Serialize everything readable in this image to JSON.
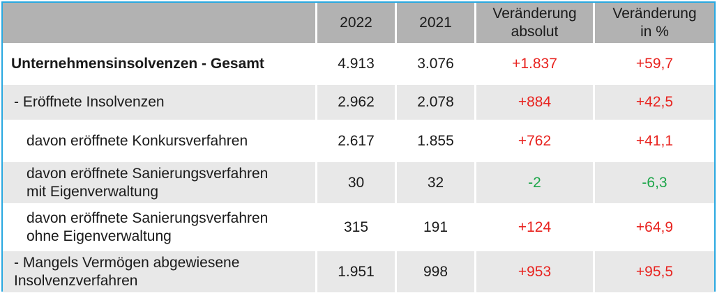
{
  "header": {
    "col_2022": "2022",
    "col_2021": "2021",
    "col_abs_line1": "Veränderung",
    "col_abs_line2": "absolut",
    "col_pct_line1": "Veränderung",
    "col_pct_line2": "in %"
  },
  "rows": [
    {
      "label_line1": "Unternehmensinsolvenzen - Gesamt",
      "label_line2": "",
      "v2022": "4.913",
      "v2021": "3.076",
      "abs": "+1.837",
      "pct": "+59,7"
    },
    {
      "label_line1": "- Eröffnete Insolvenzen",
      "label_line2": "",
      "v2022": "2.962",
      "v2021": "2.078",
      "abs": "+884",
      "pct": "+42,5"
    },
    {
      "label_line1": "davon eröffnete Konkursverfahren",
      "label_line2": "",
      "v2022": "2.617",
      "v2021": "1.855",
      "abs": "+762",
      "pct": "+41,1"
    },
    {
      "label_line1": "davon eröffnete Sanierungsverfahren",
      "label_line2": "mit Eigenverwaltung",
      "v2022": "30",
      "v2021": "32",
      "abs": "-2",
      "pct": "-6,3"
    },
    {
      "label_line1": "davon eröffnete Sanierungsverfahren",
      "label_line2": "ohne Eigenverwaltung",
      "v2022": "315",
      "v2021": "191",
      "abs": "+124",
      "pct": "+64,9"
    },
    {
      "label_line1": "- Mangels Vermögen abgewiesene",
      "label_line2": "Insolvenzverfahren",
      "v2022": "1.951",
      "v2021": "998",
      "abs": "+953",
      "pct": "+95,5"
    }
  ],
  "colors": {
    "frame": "#29a8e0",
    "header_bg": "#b2b2b2",
    "row_shade": "#e8e8e8",
    "positive": "#e8231f",
    "negative": "#1ea64a"
  }
}
